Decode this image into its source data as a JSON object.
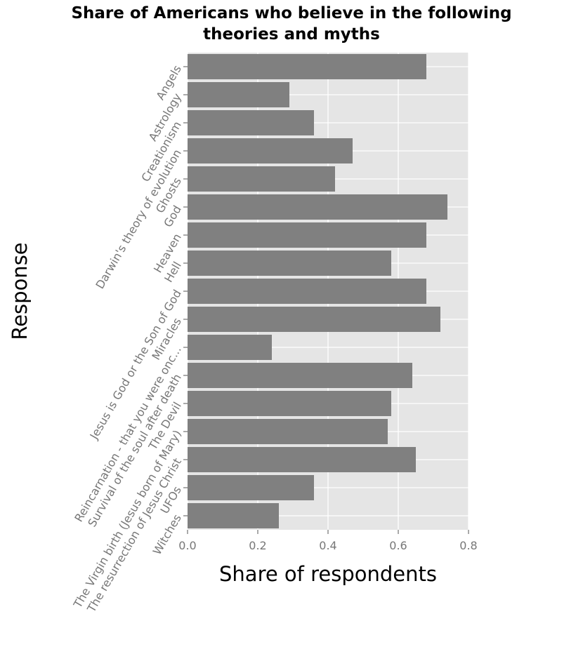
{
  "chart_data": {
    "type": "bar",
    "orientation": "horizontal",
    "title_lines": [
      "Share of Americans who believe in the following",
      "theories and myths"
    ],
    "xlabel": "Share of respondents",
    "ylabel": "Response",
    "xlim": [
      0,
      0.8
    ],
    "xticks": [
      "0.0",
      "0.2",
      "0.4",
      "0.6",
      "0.8"
    ],
    "grid": true,
    "categories": [
      "Angels",
      "Astrology",
      "Creationism",
      "Darwin's theory of evolution",
      "Ghosts",
      "God",
      "Heaven",
      "Hell",
      "Jesus is God or the Son of God",
      "Miracles",
      "Reincarnation - that you were onc...",
      "Survival of the soul after death",
      "The Devil",
      "The Virgin birth (Jesus born of Mary)",
      "The resurrection of Jesus Christ",
      "UFOs",
      "Witches"
    ],
    "values": [
      0.68,
      0.29,
      0.36,
      0.47,
      0.42,
      0.74,
      0.68,
      0.58,
      0.68,
      0.72,
      0.24,
      0.64,
      0.58,
      0.57,
      0.65,
      0.36,
      0.26
    ],
    "colors": {
      "bar": "#808080",
      "plot_bg": "#e5e5e5",
      "grid": "#ffffff",
      "tick_label": "#777777",
      "axis_title": "#000000"
    }
  }
}
